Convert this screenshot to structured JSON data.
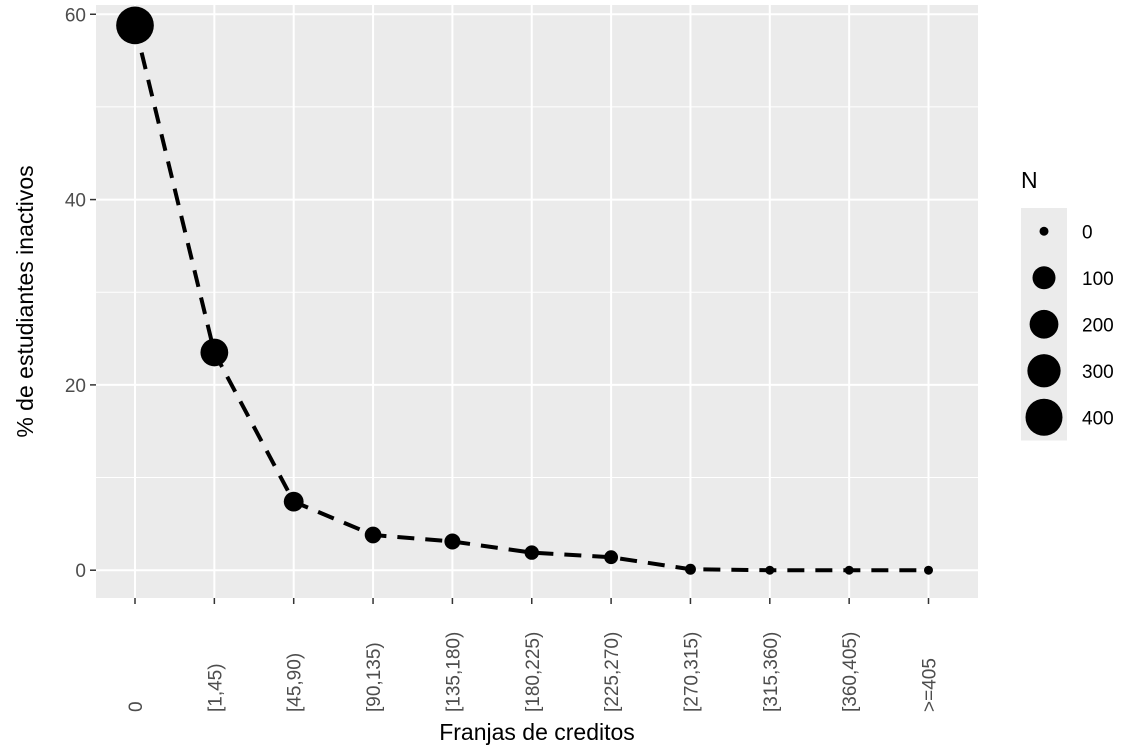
{
  "chart_data": {
    "type": "line",
    "categories": [
      "0",
      "[1,45)",
      "[45,90)",
      "[90,135)",
      "[135,180)",
      "[180,225)",
      "[225,270)",
      "[270,315)",
      "[315,360)",
      "[360,405)",
      ">=405"
    ],
    "values": [
      58.8,
      23.5,
      7.4,
      3.8,
      3.1,
      1.9,
      1.4,
      0.1,
      0.0,
      0.0,
      0.0
    ],
    "n_values": [
      420,
      180,
      60,
      30,
      25,
      15,
      12,
      2,
      0,
      0,
      0
    ],
    "line_style": "dashed",
    "xlabel": "Franjas de creditos",
    "ylabel": "% de estudiantes inactivos",
    "ylim": [
      -3,
      61
    ],
    "yticks": [
      0,
      20,
      40,
      60
    ],
    "grid": true,
    "legend": {
      "title": "N",
      "placement": "right",
      "entries": [
        {
          "label": "0",
          "n": 0
        },
        {
          "label": "100",
          "n": 100
        },
        {
          "label": "200",
          "n": 200
        },
        {
          "label": "300",
          "n": 300
        },
        {
          "label": "400",
          "n": 400
        }
      ]
    },
    "colors": {
      "panel": "#ebebeb",
      "grid": "#ffffff",
      "mark": "#000000",
      "tick": "#333333"
    }
  }
}
